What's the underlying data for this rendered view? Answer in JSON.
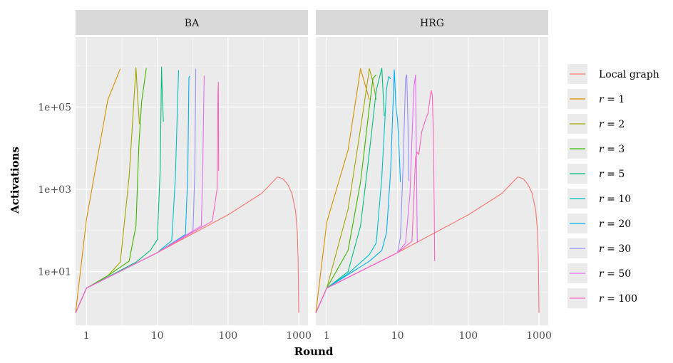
{
  "chart_data": {
    "type": "line",
    "xlabel": "Round",
    "ylabel": "Activations",
    "x_scale": "log10",
    "y_scale": "log10",
    "xlim": [
      0.7,
      1350
    ],
    "ylim": [
      0.5,
      5000000
    ],
    "x_ticks": [
      {
        "value": 1,
        "label": "1"
      },
      {
        "value": 10,
        "label": "10"
      },
      {
        "value": 100,
        "label": "100"
      },
      {
        "value": 1000,
        "label": "1000"
      }
    ],
    "y_ticks": [
      {
        "value": 10,
        "label": "1e+01"
      },
      {
        "value": 1000,
        "label": "1e+03"
      },
      {
        "value": 100000,
        "label": "1e+05"
      }
    ],
    "grid": true,
    "legend_position": "right",
    "series_names": [
      "Local graph",
      "r = 1",
      "r = 2",
      "r = 3",
      "r = 5",
      "r = 10",
      "r = 20",
      "r = 30",
      "r = 50",
      "r = 100"
    ],
    "colors": [
      "#F8766D",
      "#D89000",
      "#A3A500",
      "#39B600",
      "#00BF7D",
      "#00BFC4",
      "#00B0F6",
      "#9590FF",
      "#E76BF3",
      "#FF62BC"
    ],
    "panels": [
      {
        "title": "BA",
        "series": [
          {
            "name": "Local graph",
            "points": [
              [
                0.7,
                1
              ],
              [
                1,
                4
              ],
              [
                10,
                29
              ],
              [
                100,
                240
              ],
              [
                300,
                800
              ],
              [
                500,
                2000
              ],
              [
                600,
                1800
              ],
              [
                700,
                1300
              ],
              [
                800,
                800
              ],
              [
                900,
                300
              ],
              [
                950,
                100
              ],
              [
                980,
                20
              ],
              [
                1000,
                1
              ]
            ]
          },
          {
            "name": "r = 1",
            "points": [
              [
                0.7,
                1
              ],
              [
                1,
                190
              ],
              [
                2,
                150000
              ],
              [
                3,
                850000
              ]
            ]
          },
          {
            "name": "r = 2",
            "points": [
              [
                0.7,
                1
              ],
              [
                1,
                4
              ],
              [
                2,
                8
              ],
              [
                3,
                17
              ],
              [
                4,
                2000
              ],
              [
                5,
                900000
              ],
              [
                5.3,
                150000
              ],
              [
                5.6,
                38000
              ]
            ]
          },
          {
            "name": "r = 3",
            "points": [
              [
                0.7,
                1
              ],
              [
                1,
                4
              ],
              [
                2,
                8
              ],
              [
                4,
                18
              ],
              [
                5,
                130
              ],
              [
                5.5,
                12000
              ],
              [
                6,
                130000
              ],
              [
                7,
                880000
              ]
            ]
          },
          {
            "name": "r = 5",
            "points": [
              [
                0.7,
                1
              ],
              [
                1,
                4
              ],
              [
                5,
                17
              ],
              [
                8,
                33
              ],
              [
                10,
                60
              ],
              [
                11,
                3000
              ],
              [
                11.5,
                940000
              ],
              [
                11.8,
                170000
              ],
              [
                12.2,
                44000
              ]
            ]
          },
          {
            "name": "r = 10",
            "points": [
              [
                0.7,
                1
              ],
              [
                1,
                4
              ],
              [
                10,
                29
              ],
              [
                16,
                57
              ],
              [
                18,
                1800
              ],
              [
                20,
                780000
              ]
            ]
          },
          {
            "name": "r = 20",
            "points": [
              [
                0.7,
                1
              ],
              [
                1,
                4
              ],
              [
                10,
                29
              ],
              [
                25,
                80
              ],
              [
                27,
                2400
              ],
              [
                28,
                520000
              ],
              [
                29,
                560000
              ]
            ]
          },
          {
            "name": "r = 30",
            "points": [
              [
                0.7,
                1
              ],
              [
                1,
                4
              ],
              [
                10,
                29
              ],
              [
                32,
                97
              ],
              [
                34,
                3000
              ],
              [
                35,
                850000
              ]
            ]
          },
          {
            "name": "r = 50",
            "points": [
              [
                0.7,
                1
              ],
              [
                1,
                4
              ],
              [
                10,
                29
              ],
              [
                42,
                130
              ],
              [
                44,
                3800
              ],
              [
                46,
                580000
              ]
            ]
          },
          {
            "name": "r = 100",
            "points": [
              [
                0.7,
                1
              ],
              [
                1,
                4
              ],
              [
                10,
                29
              ],
              [
                60,
                170
              ],
              [
                70,
                1000
              ],
              [
                72,
                200000
              ],
              [
                73,
                400000
              ],
              [
                73.8,
                2800
              ]
            ]
          }
        ]
      },
      {
        "title": "HRG",
        "series": [
          {
            "name": "Local graph",
            "points": [
              [
                0.7,
                1
              ],
              [
                1,
                4
              ],
              [
                10,
                29
              ],
              [
                100,
                240
              ],
              [
                300,
                800
              ],
              [
                500,
                2000
              ],
              [
                600,
                1800
              ],
              [
                700,
                1300
              ],
              [
                800,
                800
              ],
              [
                900,
                300
              ],
              [
                950,
                100
              ],
              [
                980,
                20
              ],
              [
                1000,
                1
              ]
            ]
          },
          {
            "name": "r = 1",
            "points": [
              [
                0.7,
                1
              ],
              [
                1,
                160
              ],
              [
                2,
                9000
              ],
              [
                3,
                850000
              ],
              [
                4,
                150000
              ]
            ]
          },
          {
            "name": "r = 2",
            "points": [
              [
                0.7,
                1
              ],
              [
                1,
                4
              ],
              [
                2,
                330
              ],
              [
                3,
                30000
              ],
              [
                4,
                850000
              ],
              [
                4.5,
                400000
              ],
              [
                5,
                150000
              ]
            ]
          },
          {
            "name": "r = 3",
            "points": [
              [
                0.7,
                1
              ],
              [
                1,
                4
              ],
              [
                2,
                33
              ],
              [
                3,
                1500
              ],
              [
                4,
                100000
              ],
              [
                4.5,
                500000
              ],
              [
                5,
                600000
              ]
            ]
          },
          {
            "name": "r = 5",
            "points": [
              [
                0.7,
                1
              ],
              [
                1,
                4
              ],
              [
                2,
                10
              ],
              [
                3,
                130
              ],
              [
                4,
                8000
              ],
              [
                5,
                250000
              ],
              [
                6,
                880000
              ],
              [
                6.5,
                60000
              ]
            ]
          },
          {
            "name": "r = 10",
            "points": [
              [
                0.7,
                1
              ],
              [
                1,
                4
              ],
              [
                2,
                9
              ],
              [
                4,
                26
              ],
              [
                5,
                50
              ],
              [
                6,
                2000
              ],
              [
                7,
                280000
              ],
              [
                7.5,
                550000
              ],
              [
                8,
                480000
              ]
            ]
          },
          {
            "name": "r = 20",
            "points": [
              [
                0.7,
                1
              ],
              [
                1,
                4
              ],
              [
                4,
                18
              ],
              [
                6,
                33
              ],
              [
                7,
                90
              ],
              [
                8,
                3000
              ],
              [
                9,
                800000
              ],
              [
                9.5,
                100000
              ],
              [
                10,
                50000
              ],
              [
                10.5,
                10000
              ],
              [
                11,
                1500
              ]
            ]
          },
          {
            "name": "r = 30",
            "points": [
              [
                0.7,
                1
              ],
              [
                1,
                4
              ],
              [
                10,
                29
              ],
              [
                11,
                70
              ],
              [
                12,
                4000
              ],
              [
                13,
                500000
              ],
              [
                13.5,
                600000
              ],
              [
                14,
                50000
              ],
              [
                14.5,
                1600
              ]
            ]
          },
          {
            "name": "r = 50",
            "points": [
              [
                0.7,
                1
              ],
              [
                1,
                4
              ],
              [
                10,
                29
              ],
              [
                13,
                50
              ],
              [
                15,
                800
              ],
              [
                17,
                300000
              ],
              [
                18,
                600000
              ],
              [
                19,
                50
              ]
            ]
          },
          {
            "name": "r = 100",
            "points": [
              [
                0.7,
                1
              ],
              [
                1,
                4
              ],
              [
                10,
                29
              ],
              [
                16,
                55
              ],
              [
                18,
                6000
              ],
              [
                19,
                8000
              ],
              [
                20,
                7000
              ],
              [
                22,
                25000
              ],
              [
                25,
                50000
              ],
              [
                27,
                70000
              ],
              [
                29,
                180000
              ],
              [
                30,
                250000
              ],
              [
                31,
                190000
              ],
              [
                32,
                30000
              ],
              [
                33,
                300
              ],
              [
                33.5,
                18
              ]
            ]
          }
        ]
      }
    ]
  }
}
